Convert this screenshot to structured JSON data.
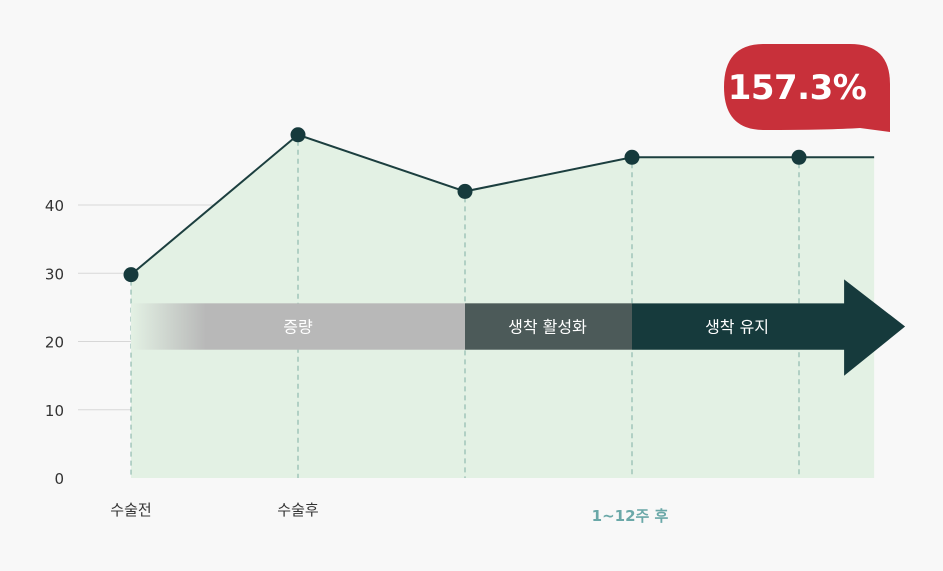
{
  "chart_data": {
    "type": "area",
    "y_ticks": [
      0,
      10,
      20,
      30,
      40
    ],
    "ylim": [
      0,
      51
    ],
    "points": [
      {
        "x": 0,
        "y": 29.8
      },
      {
        "x": 1,
        "y": 50.3
      },
      {
        "x": 2,
        "y": 42.0
      },
      {
        "x": 3,
        "y": 47.0
      },
      {
        "x": 4,
        "y": 47.0
      }
    ],
    "line_end_x": 4.45,
    "x_labels": [
      {
        "x": 0,
        "text": "수술전"
      },
      {
        "x": 1,
        "text": "수술후"
      }
    ],
    "period_label": {
      "x_from": 2,
      "x_to": 4,
      "text": "1~12주 후"
    },
    "phases": [
      {
        "label": "증량",
        "x_from": 0,
        "x_to": 2,
        "color": "#b8b8b8"
      },
      {
        "label": "생착 활성화",
        "x_from": 2,
        "x_to": 3,
        "color": "#4c5a59"
      },
      {
        "label": "생착 유지",
        "x_from": 3,
        "x_to": 4.3,
        "color": "#163a3c"
      }
    ],
    "callout": "157.3%",
    "colors": {
      "line": "#1c3f3f",
      "area": "#e3f1e4",
      "marker": "#163a3c",
      "callout": "#c8303a",
      "grid": "#d7d7d7",
      "dashed": "#7fb0a5"
    },
    "grid": true
  }
}
